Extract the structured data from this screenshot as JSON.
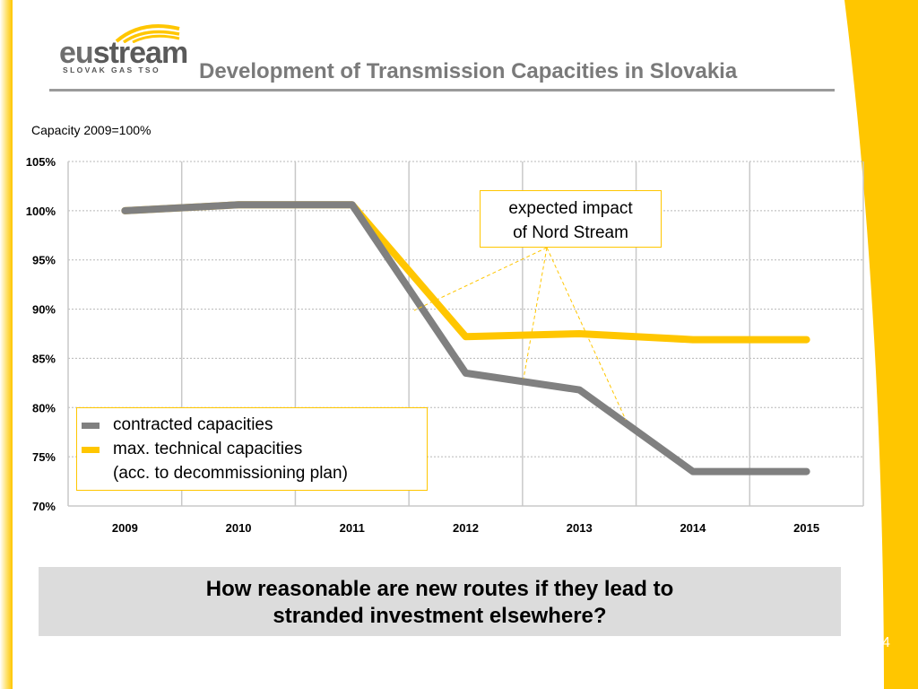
{
  "logo": {
    "word_eu": "eu",
    "word_stream": "stream",
    "tagline": "SLOVAK GAS TSO"
  },
  "slide_title": "Development of Transmission Capacities in Slovakia",
  "chart_note": "Capacity 2009=100%",
  "callout": {
    "line1": "expected impact",
    "line2": "of Nord Stream"
  },
  "legend": {
    "contracted": "contracted capacities",
    "technical_line1": "max. technical capacities",
    "technical_line2": "(acc. to decommissioning plan)"
  },
  "question": {
    "line1": "How reasonable are new routes if they lead to",
    "line2": "stranded investment elsewhere?"
  },
  "page_number": "4",
  "colors": {
    "brand_yellow": "#ffc600",
    "contracted_gray": "#808080",
    "title_gray": "#7a7a7a"
  },
  "chart_data": {
    "type": "line",
    "categories": [
      "2009",
      "2010",
      "2011",
      "2012",
      "2013",
      "2014",
      "2015"
    ],
    "y_tick_labels": [
      "105%",
      "100%",
      "95%",
      "90%",
      "85%",
      "80%",
      "75%",
      "70%"
    ],
    "ylim": [
      70,
      105
    ],
    "y_unit": "%",
    "grid": true,
    "legend_position": "bottom-left",
    "series": [
      {
        "name": "contracted capacities",
        "color": "#808080",
        "values": [
          100.0,
          100.6,
          100.6,
          83.5,
          81.8,
          73.5,
          73.5
        ]
      },
      {
        "name": "max. technical capacities (acc. to decommissioning plan)",
        "color": "#ffc600",
        "values": [
          100.0,
          100.6,
          100.6,
          87.2,
          87.5,
          86.9,
          86.9
        ]
      }
    ],
    "annotation": "expected impact of Nord Stream"
  }
}
